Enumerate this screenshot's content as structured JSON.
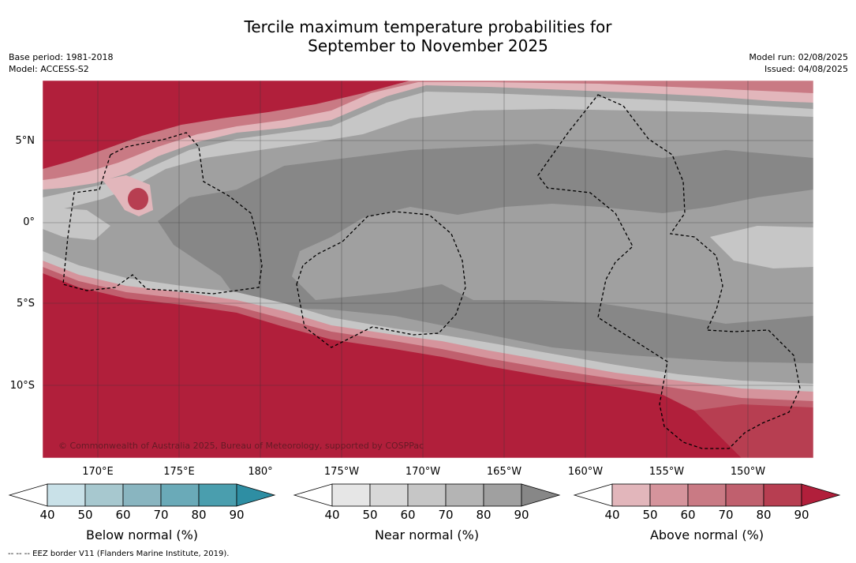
{
  "title_line1": "Tercile maximum temperature probabilities for",
  "title_line2": "September to November 2025",
  "meta_left": {
    "base_period": "Base period: 1981-2018",
    "model": "Model: ACCESS-S2"
  },
  "meta_right": {
    "model_run": "Model run: 02/08/2025",
    "issued": "Issued: 04/08/2025"
  },
  "lat_labels": [
    "5°N",
    "0°",
    "5°S",
    "10°S"
  ],
  "lon_labels": [
    "170°E",
    "175°E",
    "180°",
    "175°W",
    "170°W",
    "165°W",
    "160°W",
    "155°W",
    "150°W"
  ],
  "copyright": "© Commonwealth of Australia 2025, Bureau of Meteorology, supported by COSPPac",
  "footnote": "--  --  -- EEZ border V11 (Flanders Marine Institute, 2019).",
  "colorbars": [
    {
      "name": "below",
      "title": "Below normal (%)",
      "ticks": [
        "40",
        "50",
        "60",
        "70",
        "80",
        "90"
      ],
      "colors": [
        "#c9e1e8",
        "#a7c8cf",
        "#89b5c0",
        "#6aaab8",
        "#4a9eae",
        "#2e8ea3"
      ]
    },
    {
      "name": "near",
      "title": "Near normal (%)",
      "ticks": [
        "40",
        "50",
        "60",
        "70",
        "80",
        "90"
      ],
      "colors": [
        "#e6e6e6",
        "#d8d8d8",
        "#c6c6c6",
        "#b4b4b4",
        "#a0a0a0",
        "#878787"
      ]
    },
    {
      "name": "above",
      "title": "Above normal (%)",
      "ticks": [
        "40",
        "50",
        "60",
        "70",
        "80",
        "90"
      ],
      "colors": [
        "#e2b6bb",
        "#d5949c",
        "#c97a84",
        "#c0606e",
        "#b73e51",
        "#b11f3b"
      ]
    }
  ],
  "map_colors": {
    "above_90": "#b11f3b",
    "above_80": "#b73e51",
    "above_70": "#c0606e",
    "above_60": "#c97a84",
    "above_50": "#d5949c",
    "above_40": "#e2b6bb",
    "near_40": "#e6e6e6",
    "near_50": "#d8d8d8",
    "near_60": "#c6c6c6",
    "near_70": "#b4b4b4",
    "near_80": "#a0a0a0",
    "near_90": "#878787"
  }
}
